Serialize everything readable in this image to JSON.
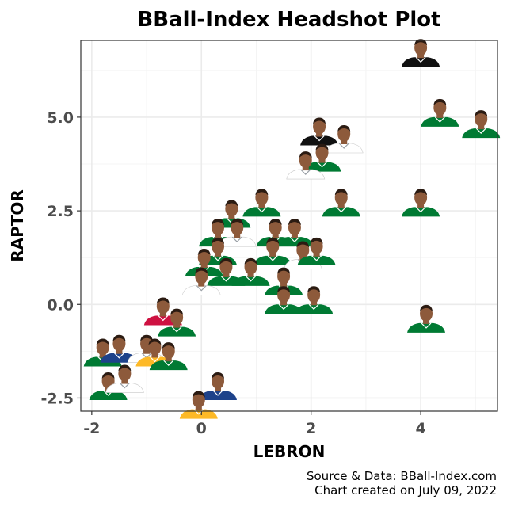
{
  "chart_data": {
    "type": "scatter",
    "title": "BBall-Index Headshot Plot",
    "xlabel": "LEBRON",
    "ylabel": "RAPTOR",
    "xlim": [
      -2.2,
      5.4
    ],
    "ylim": [
      -2.85,
      7.05
    ],
    "x_ticks": [
      -2,
      0,
      2,
      4
    ],
    "x_tick_labels": [
      "-2",
      "0",
      "2",
      "4"
    ],
    "y_ticks": [
      -2.5,
      0,
      2.5,
      5
    ],
    "y_tick_labels": [
      "-2.5",
      "0.0",
      "2.5",
      "5.0"
    ],
    "grid": true,
    "marker": "player-headshot",
    "points": [
      {
        "x": 4.0,
        "y": 6.6,
        "jersey": "#111111"
      },
      {
        "x": 4.35,
        "y": 5.0,
        "jersey": "#007a33"
      },
      {
        "x": 5.1,
        "y": 4.7,
        "jersey": "#007a33"
      },
      {
        "x": 2.15,
        "y": 4.5,
        "jersey": "#111111"
      },
      {
        "x": 2.6,
        "y": 4.3,
        "jersey": "#ffffff"
      },
      {
        "x": 2.2,
        "y": 3.8,
        "jersey": "#007a33"
      },
      {
        "x": 1.9,
        "y": 3.6,
        "jersey": "#ffffff"
      },
      {
        "x": 2.55,
        "y": 2.6,
        "jersey": "#007a33"
      },
      {
        "x": 4.0,
        "y": 2.6,
        "jersey": "#007a33"
      },
      {
        "x": 1.1,
        "y": 2.6,
        "jersey": "#007a33"
      },
      {
        "x": 0.55,
        "y": 2.3,
        "jersey": "#007a33"
      },
      {
        "x": 0.3,
        "y": 1.8,
        "jersey": "#007a33"
      },
      {
        "x": 0.65,
        "y": 1.8,
        "jersey": "#ffffff"
      },
      {
        "x": 1.35,
        "y": 1.8,
        "jersey": "#007a33"
      },
      {
        "x": 1.7,
        "y": 1.8,
        "jersey": "#007a33"
      },
      {
        "x": 1.3,
        "y": 1.3,
        "jersey": "#007a33"
      },
      {
        "x": 1.85,
        "y": 1.2,
        "jersey": "#ffffff"
      },
      {
        "x": 2.1,
        "y": 1.3,
        "jersey": "#007a33"
      },
      {
        "x": 0.3,
        "y": 1.3,
        "jersey": "#007a33"
      },
      {
        "x": 0.05,
        "y": 1.0,
        "jersey": "#007a33"
      },
      {
        "x": 0.45,
        "y": 0.75,
        "jersey": "#007a33"
      },
      {
        "x": 0.9,
        "y": 0.75,
        "jersey": "#007a33"
      },
      {
        "x": 0.0,
        "y": 0.5,
        "jersey": "#ffffff"
      },
      {
        "x": 1.5,
        "y": 0.5,
        "jersey": "#007a33"
      },
      {
        "x": 1.5,
        "y": 0.0,
        "jersey": "#007a33"
      },
      {
        "x": 2.05,
        "y": 0.0,
        "jersey": "#007a33"
      },
      {
        "x": -0.7,
        "y": -0.3,
        "jersey": "#ce1141"
      },
      {
        "x": -0.45,
        "y": -0.6,
        "jersey": "#007a33"
      },
      {
        "x": 4.1,
        "y": -0.5,
        "jersey": "#007a33"
      },
      {
        "x": -1.8,
        "y": -1.4,
        "jersey": "#007a33"
      },
      {
        "x": -1.5,
        "y": -1.3,
        "jersey": "#1d428a"
      },
      {
        "x": -1.0,
        "y": -1.3,
        "jersey": "#ffffff"
      },
      {
        "x": -0.85,
        "y": -1.4,
        "jersey": "#fdb927"
      },
      {
        "x": -0.6,
        "y": -1.5,
        "jersey": "#007a33"
      },
      {
        "x": -1.7,
        "y": -2.3,
        "jersey": "#007a33"
      },
      {
        "x": -1.4,
        "y": -2.1,
        "jersey": "#ffffff"
      },
      {
        "x": 0.3,
        "y": -2.3,
        "jersey": "#1d428a"
      },
      {
        "x": -0.05,
        "y": -2.8,
        "jersey": "#fdb927"
      }
    ]
  },
  "caption": {
    "line1": "Source & Data: BBall-Index.com",
    "line2": "Chart created on July 09, 2022"
  },
  "colors": {
    "panel_border": "#333333",
    "grid_major": "#ebebeb",
    "grid_minor": "#f4f4f4",
    "skin": "#8d5a3b",
    "hair": "#2b1b12"
  }
}
